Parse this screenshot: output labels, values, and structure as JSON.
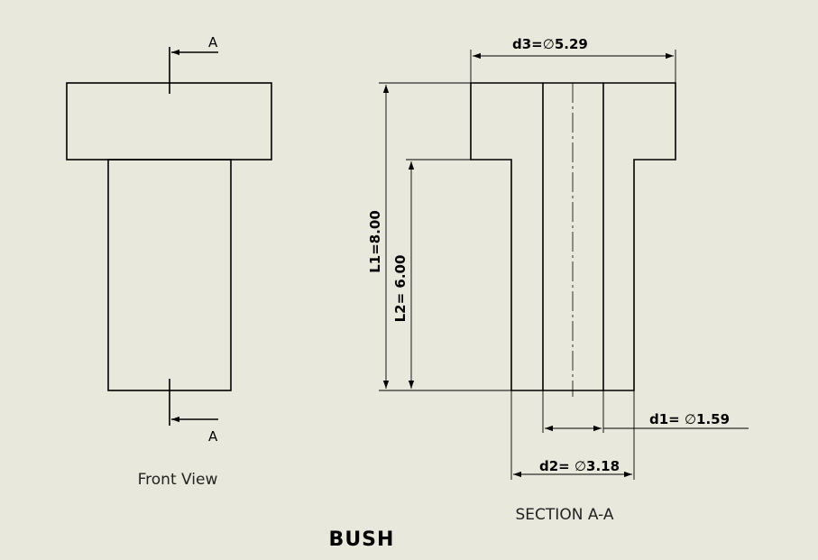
{
  "drawing": {
    "title": "BUSH",
    "front_view_label": "Front View",
    "section_label": "SECTION A-A",
    "cut_label_top": "A",
    "cut_label_bottom": "A"
  },
  "dimensions": {
    "d3": {
      "prefix": "d3=",
      "symbol": "∅",
      "value": "5.29"
    },
    "l1": "L1=8.00",
    "l2": "L2= 6.00",
    "d1": {
      "prefix": "d1= ",
      "symbol": "∅",
      "value": "1.59"
    },
    "d2": {
      "prefix": "d2= ",
      "symbol": "∅",
      "value": "3.18"
    }
  },
  "colors": {
    "background": "#e9e8dc",
    "line": "#000000"
  }
}
